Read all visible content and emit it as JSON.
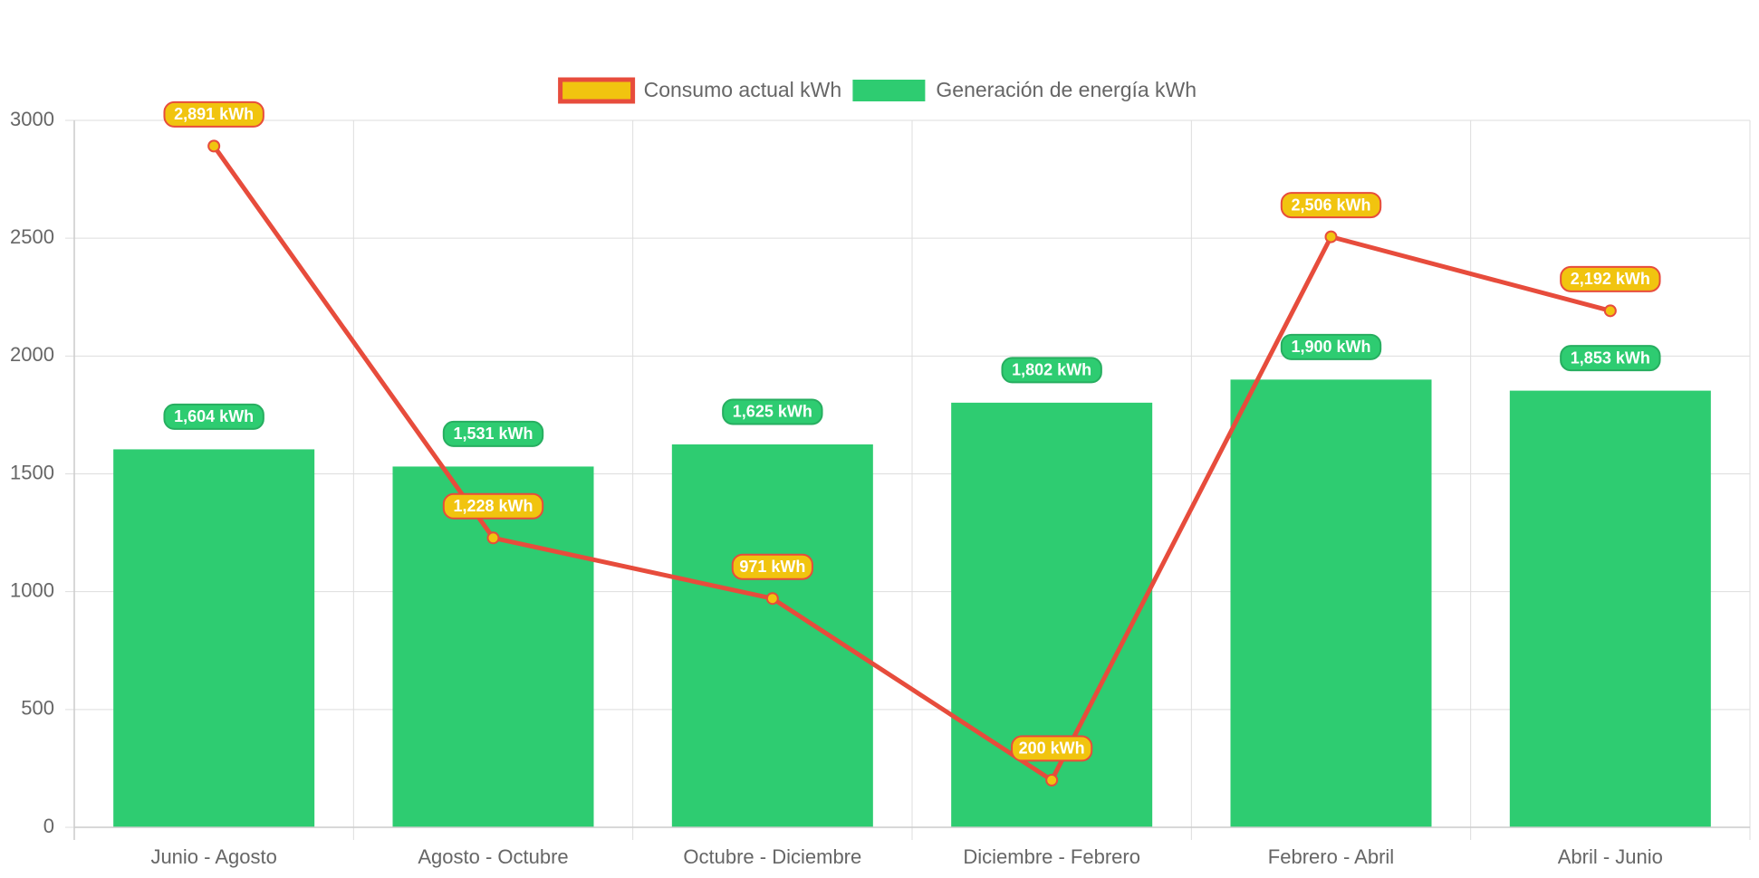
{
  "chart_data": {
    "type": "bar",
    "categories": [
      "Junio - Agosto",
      "Agosto - Octubre",
      "Octubre - Diciembre",
      "Diciembre - Febrero",
      "Febrero - Abril",
      "Abril - Junio"
    ],
    "series": [
      {
        "name": "Consumo actual kWh",
        "type": "line",
        "values": [
          2891,
          1228,
          971,
          200,
          2506,
          2192
        ],
        "labels": [
          "2,891 kWh",
          "1,228 kWh",
          "971 kWh",
          "200 kWh",
          "2,506 kWh",
          "2,192 kWh"
        ],
        "color": "#e74c3c",
        "fill": "#f1c40f"
      },
      {
        "name": "Generación de energía kWh",
        "type": "bar",
        "values": [
          1604,
          1531,
          1625,
          1802,
          1900,
          1853
        ],
        "labels": [
          "1,604 kWh",
          "1,531 kWh",
          "1,625 kWh",
          "1,802 kWh",
          "1,900 kWh",
          "1,853 kWh"
        ],
        "color": "#2ecc71",
        "border": "#27ae60"
      }
    ],
    "ylim": [
      0,
      3000
    ],
    "yticks": [
      "0",
      "500",
      "1000",
      "1500",
      "2000",
      "2500",
      "3000"
    ],
    "ytick_values": [
      0,
      500,
      1000,
      1500,
      2000,
      2500,
      3000
    ],
    "legend": "top-center",
    "grid": true,
    "colors": {
      "grid": "#dddddd",
      "axis": "#cccccc",
      "text": "#666666"
    }
  }
}
